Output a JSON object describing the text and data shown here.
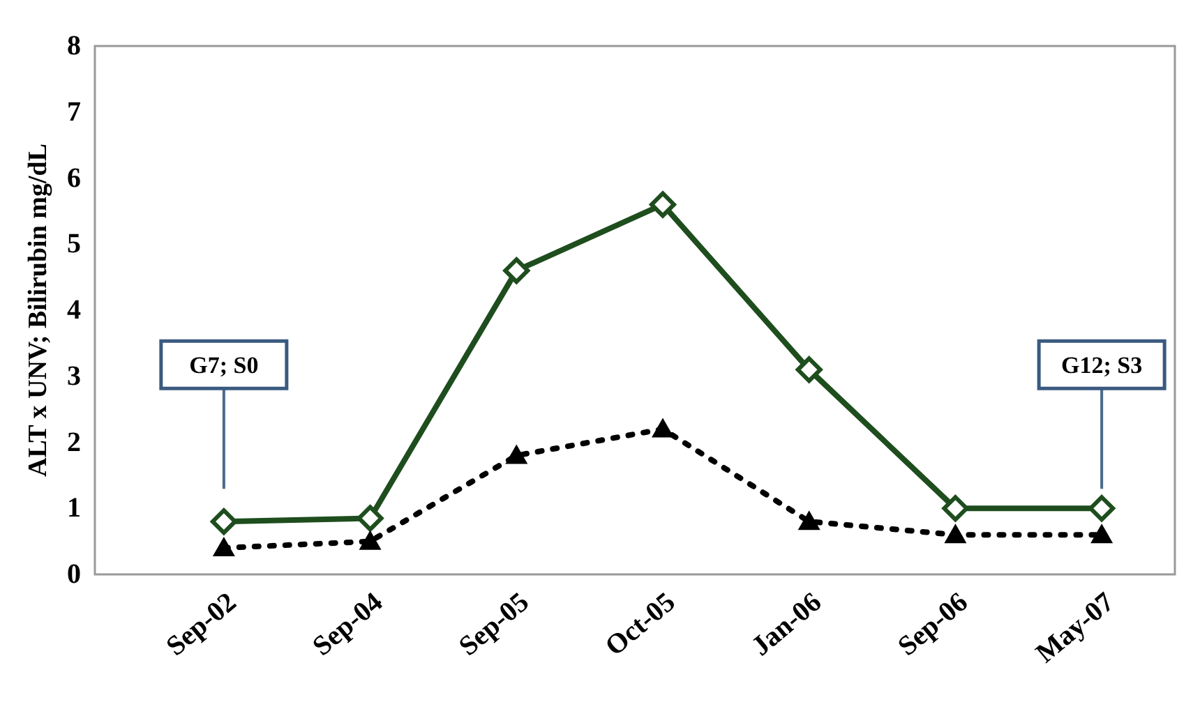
{
  "chart_data": {
    "type": "line",
    "ylabel": "ALT x UNV; Bilirubin mg/dL",
    "categories": [
      "Sep-02",
      "Sep-04",
      "Sep-05",
      "Oct-05",
      "Jan-06",
      "Sep-06",
      "May-07"
    ],
    "series": [
      {
        "color": "#1e4d1e",
        "values": [
          0.8,
          0.85,
          4.6,
          5.6,
          3.1,
          1.0,
          1.0
        ],
        "marker": "diamond",
        "line_style": "solid"
      },
      {
        "color": "#000000",
        "values": [
          0.4,
          0.5,
          1.8,
          2.2,
          0.8,
          0.6,
          0.6
        ],
        "marker": "triangle",
        "line_style": "dotted"
      }
    ],
    "ylim": [
      0,
      8
    ],
    "yticks": [
      0,
      1,
      2,
      3,
      4,
      5,
      6,
      7,
      8
    ],
    "grid": false,
    "annotations": [
      "G7; S0",
      "G12; S3"
    ]
  }
}
